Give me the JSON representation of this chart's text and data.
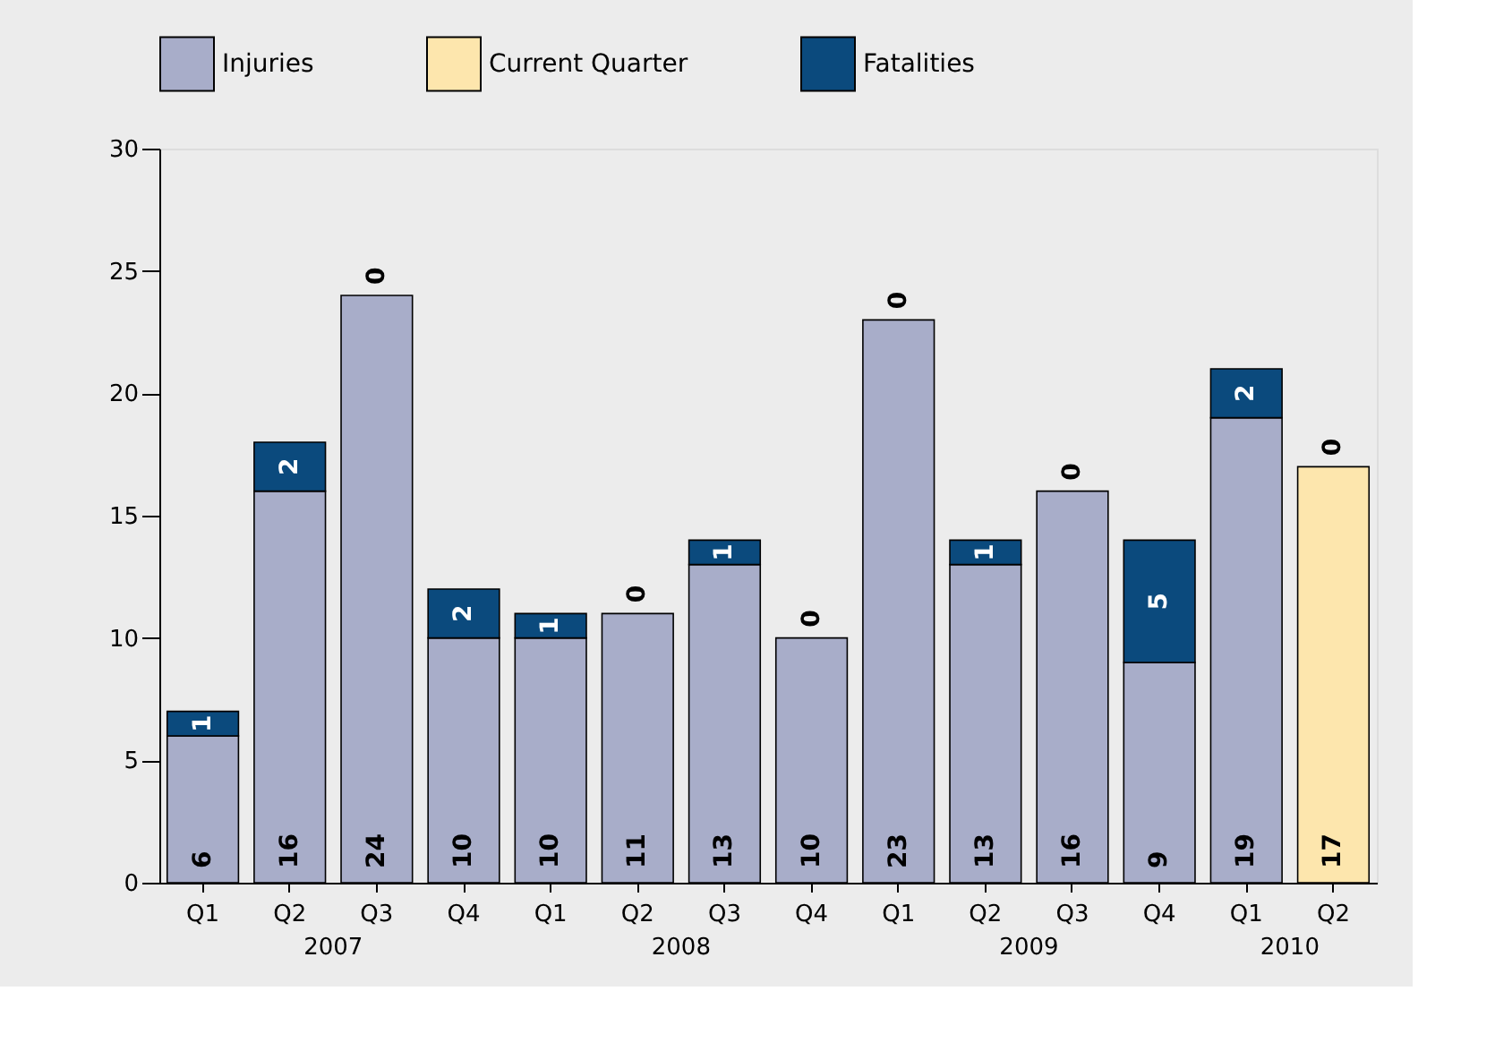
{
  "chart_data": {
    "type": "bar",
    "stacked": true,
    "categories": [
      "Q1",
      "Q2",
      "Q3",
      "Q4",
      "Q1",
      "Q2",
      "Q3",
      "Q4",
      "Q1",
      "Q2",
      "Q3",
      "Q4",
      "Q1",
      "Q2"
    ],
    "series": [
      {
        "name": "Injuries",
        "color": "#a8adc9",
        "values": [
          6,
          16,
          24,
          10,
          10,
          11,
          13,
          10,
          23,
          13,
          16,
          9,
          19,
          null
        ]
      },
      {
        "name": "Current Quarter",
        "color": "#fde6ad",
        "values": [
          null,
          null,
          null,
          null,
          null,
          null,
          null,
          null,
          null,
          null,
          null,
          null,
          null,
          17
        ]
      },
      {
        "name": "Fatalities",
        "color": "#0b4a7d",
        "values": [
          1,
          2,
          0,
          2,
          1,
          0,
          1,
          0,
          0,
          1,
          0,
          5,
          2,
          0
        ]
      }
    ],
    "ylim": [
      0,
      30
    ],
    "yticks": [
      0,
      5,
      10,
      15,
      20,
      25,
      30
    ],
    "annotations": [
      "2007",
      "2008",
      "2009",
      "2010"
    ],
    "data_labels": true,
    "grid": false,
    "legend": "top"
  }
}
